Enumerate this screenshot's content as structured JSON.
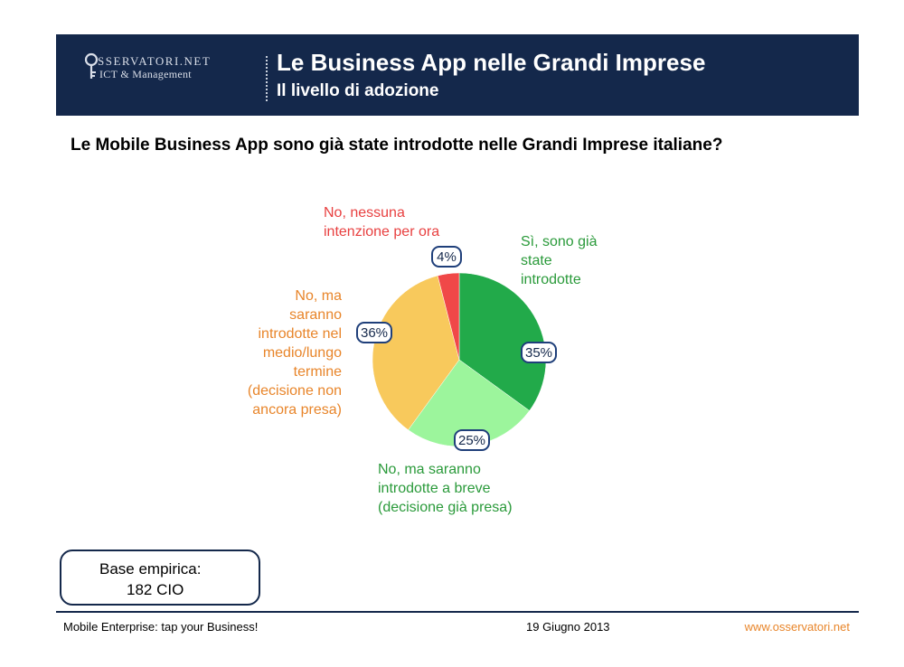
{
  "header": {
    "logo_top": "SSERVATORI.NET",
    "logo_sub": "ICT & Management",
    "title": "Le Business App nelle Grandi Imprese",
    "subtitle": "Il livello di adozione"
  },
  "question": "Le Mobile Business App sono già state introdotte nelle Grandi Imprese italiane?",
  "chart_data": {
    "type": "pie",
    "title": "",
    "slices": [
      {
        "label": "Sì, sono già state introdotte",
        "label_lines": [
          "Sì, sono già",
          "state",
          "introdotte"
        ],
        "value": 35,
        "display": "35%",
        "color": "#22aa4a",
        "text_color": "#2a9a3a"
      },
      {
        "label": "No, ma saranno introdotte a breve (decisione già presa)",
        "label_lines": [
          "No, ma saranno",
          "introdotte a breve",
          "(decisione già presa)"
        ],
        "value": 25,
        "display": "25%",
        "color": "#9cf59c",
        "text_color": "#2a9a3a"
      },
      {
        "label": "No, ma saranno introdotte nel medio/lungo termine (decisione non ancora presa)",
        "label_lines": [
          "No, ma",
          "saranno",
          "introdotte nel",
          "medio/lungo",
          "termine",
          "(decisione non",
          "ancora presa)"
        ],
        "value": 36,
        "display": "36%",
        "color": "#f8c95c",
        "text_color": "#e8852a"
      },
      {
        "label": "No, nessuna intenzione per ora",
        "label_lines": [
          "No, nessuna",
          "intenzione per ora"
        ],
        "value": 4,
        "display": "4%",
        "color": "#f04848",
        "text_color": "#e84040"
      }
    ]
  },
  "base": {
    "label": "Base empirica:",
    "value": "182 CIO"
  },
  "footer": {
    "left": "Mobile Enterprise: tap your Business!",
    "date": "19 Giugno 2013",
    "site": "www.osservatori.net"
  },
  "colors": {
    "navy": "#14284b",
    "label_border": "#1f3f7a"
  }
}
